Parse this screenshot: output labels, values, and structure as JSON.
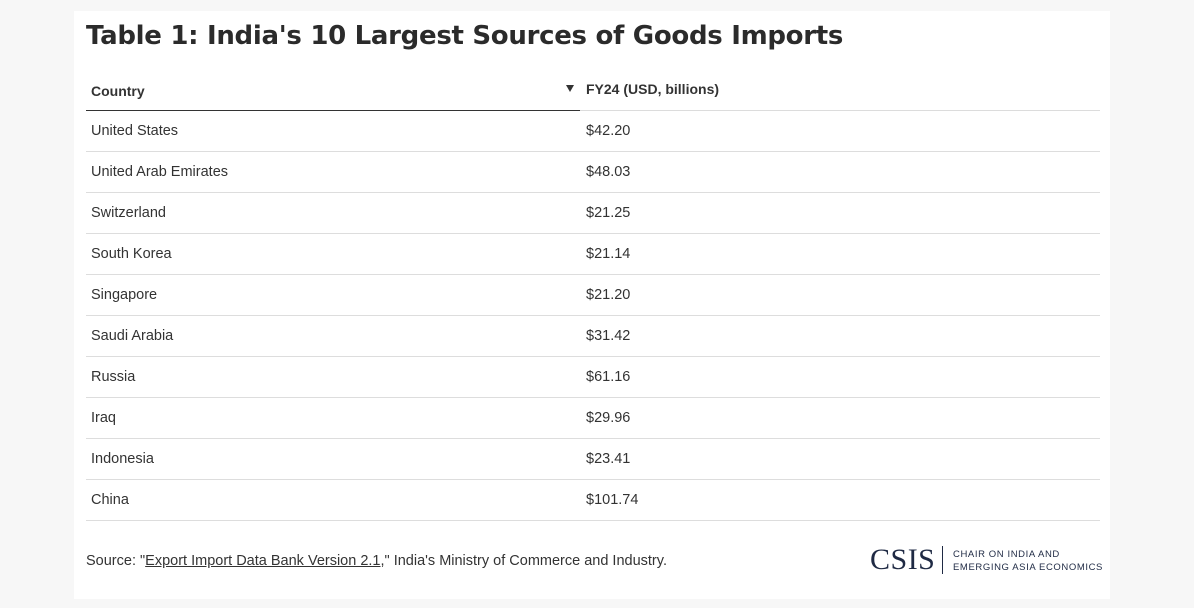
{
  "chart_data": {
    "type": "table",
    "title": "Table 1: India's 10 Largest Sources of Goods Imports",
    "columns": [
      "Country",
      "FY24 (USD, billions)"
    ],
    "sort": {
      "column": "Country",
      "direction": "descending"
    },
    "rows": [
      {
        "country": "United States",
        "value": "$42.20"
      },
      {
        "country": "United Arab Emirates",
        "value": "$48.03"
      },
      {
        "country": "Switzerland",
        "value": "$21.25"
      },
      {
        "country": "South Korea",
        "value": "$21.14"
      },
      {
        "country": "Singapore",
        "value": "$21.20"
      },
      {
        "country": "Saudi Arabia",
        "value": "$31.42"
      },
      {
        "country": "Russia",
        "value": "$61.16"
      },
      {
        "country": "Iraq",
        "value": "$29.96"
      },
      {
        "country": "Indonesia",
        "value": "$23.41"
      },
      {
        "country": "China",
        "value": "$101.74"
      }
    ]
  },
  "source": {
    "prefix": "Source: \"",
    "link_text": "Export Import Data Bank Version 2.1",
    "suffix": ",\" India's Ministry of Commerce and Industry."
  },
  "logo": {
    "mark": "CSIS",
    "line1": "CHAIR ON INDIA AND",
    "line2": "EMERGING ASIA ECONOMICS"
  },
  "colors": {
    "background": "#f7f7f7",
    "card": "#ffffff",
    "text": "#333333",
    "logo": "#1f2a44",
    "row_divider": "#dddddd"
  },
  "icons": {
    "sort": "sort-descending-icon"
  }
}
